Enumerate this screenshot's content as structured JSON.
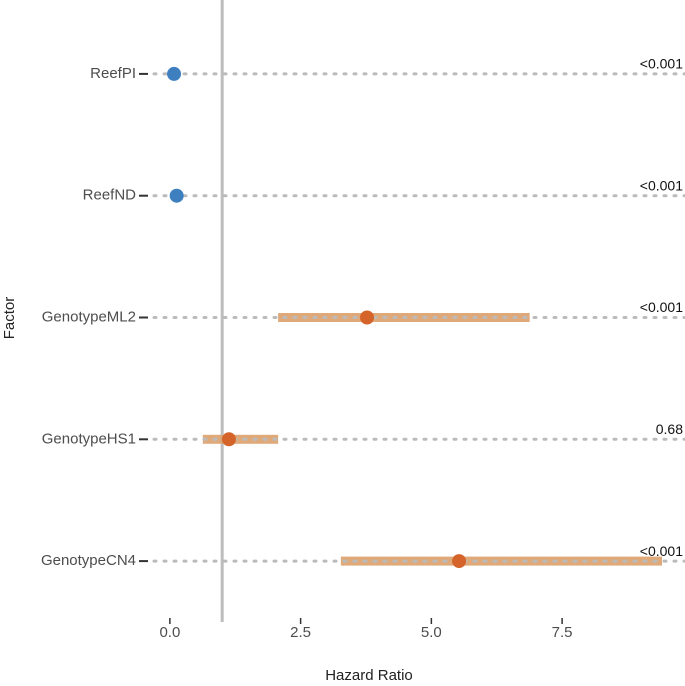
{
  "chart_data": {
    "type": "forest",
    "x_label": "Hazard Ratio",
    "y_label": "Factor",
    "categories": [
      "ReefPI",
      "ReefND",
      "GenotypeML2",
      "GenotypeHS1",
      "GenotypeCN4"
    ],
    "values": [
      0.08,
      0.13,
      3.77,
      1.13,
      5.53
    ],
    "lower": [
      null,
      null,
      2.07,
      0.63,
      3.27
    ],
    "upper": [
      null,
      null,
      6.88,
      2.07,
      9.41
    ],
    "p_labels": [
      "<0.001",
      "<0.001",
      "<0.001",
      "0.68",
      "<0.001"
    ],
    "colors": [
      "#3d7fbf",
      "#3d7fbf",
      "#d4642a",
      "#d4642a",
      "#d4642a"
    ],
    "ci_color": "#dca06c",
    "ref_line": 1,
    "xlim": [
      -0.38,
      9.85
    ],
    "xticks": [
      {
        "value": 0,
        "label": "0.0"
      },
      2.5,
      {
        "value": 5,
        "label": "5.0"
      },
      7.5
    ]
  }
}
